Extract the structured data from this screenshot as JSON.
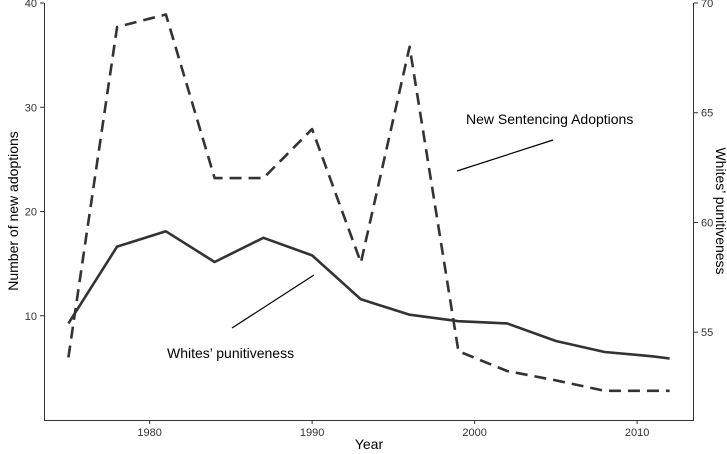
{
  "chart_data": {
    "type": "line",
    "title": "",
    "xlabel": "Year",
    "ylabel_left": "Number of new adoptions",
    "ylabel_right": "Whites’ punitiveness",
    "xlim": [
      1973.5,
      2013.5
    ],
    "ylim_left": [
      0,
      40
    ],
    "ylim_right": [
      51,
      70
    ],
    "x_ticks": [
      1980,
      1990,
      2000,
      2010
    ],
    "y_ticks_left": [
      10,
      20,
      30,
      40
    ],
    "y_ticks_right": [
      55,
      60,
      65,
      70
    ],
    "grid": false,
    "series": [
      {
        "name": "New Sentencing Adoptions",
        "axis": "left",
        "style": "dashed",
        "x": [
          1975,
          1978,
          1981,
          1984,
          1987,
          1990,
          1993,
          1996,
          1999,
          2002,
          2005,
          2008,
          2011,
          2012
        ],
        "values": [
          6,
          37.7,
          38.9,
          23.2,
          23.2,
          27.9,
          15.1,
          35.8,
          6.6,
          4.7,
          3.8,
          2.8,
          2.8,
          2.8
        ]
      },
      {
        "name": "Whites’ punitiveness",
        "axis": "right",
        "style": "solid",
        "x": [
          1975,
          1978,
          1981,
          1984,
          1987,
          1990,
          1993,
          1996,
          1999,
          2002,
          2005,
          2008,
          2011,
          2012
        ],
        "values": [
          55.4,
          58.9,
          59.6,
          58.2,
          59.3,
          58.5,
          56.5,
          55.8,
          55.5,
          55.4,
          54.6,
          54.1,
          53.9,
          53.8
        ]
      }
    ],
    "annotations": [
      {
        "text": "New Sentencing Adoptions",
        "series": 0
      },
      {
        "text": "Whites’ punitiveness",
        "series": 1
      }
    ]
  }
}
